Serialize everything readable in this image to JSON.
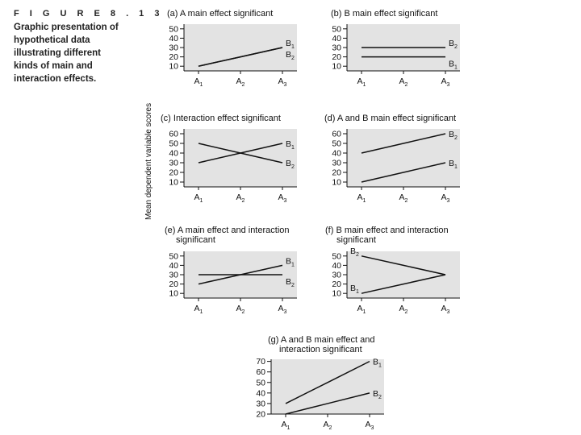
{
  "figure": {
    "number": "F I G U R E   8 . 1 3",
    "caption_lines": [
      "Graphic presentation of",
      "hypothetical data",
      "illustrating different",
      "kinds of main and",
      "interaction effects."
    ],
    "ylabel": "Mean dependent variable scores"
  },
  "chart_data": [
    {
      "type": "line",
      "title_lines": [
        "(a) A main effect significant"
      ],
      "categories": [
        "A1",
        "A2",
        "A3"
      ],
      "yticks": [
        10,
        20,
        30,
        40,
        50
      ],
      "ylim": [
        5,
        55
      ],
      "grid": false,
      "series": [
        {
          "name": "B1",
          "values": [
            10,
            20,
            30
          ]
        },
        {
          "name": "B2",
          "values": [
            10,
            20,
            30
          ]
        }
      ]
    },
    {
      "type": "line",
      "title_lines": [
        "(b) B main effect significant"
      ],
      "categories": [
        "A1",
        "A2",
        "A3"
      ],
      "yticks": [
        10,
        20,
        30,
        40,
        50
      ],
      "ylim": [
        5,
        55
      ],
      "grid": false,
      "series": [
        {
          "name": "B2",
          "values": [
            30,
            30,
            30
          ]
        },
        {
          "name": "B1",
          "values": [
            20,
            20,
            20
          ]
        }
      ]
    },
    {
      "type": "line",
      "title_lines": [
        "(c) Interaction effect significant"
      ],
      "categories": [
        "A1",
        "A2",
        "A3"
      ],
      "yticks": [
        10,
        20,
        30,
        40,
        50,
        60
      ],
      "ylim": [
        5,
        65
      ],
      "grid": false,
      "series": [
        {
          "name": "B1",
          "values": [
            30,
            40,
            50
          ]
        },
        {
          "name": "B2",
          "values": [
            50,
            40,
            30
          ]
        }
      ]
    },
    {
      "type": "line",
      "title_lines": [
        "(d) A and B main effect significant"
      ],
      "categories": [
        "A1",
        "A2",
        "A3"
      ],
      "yticks": [
        10,
        20,
        30,
        40,
        50,
        60
      ],
      "ylim": [
        5,
        65
      ],
      "grid": false,
      "series": [
        {
          "name": "B2",
          "values": [
            40,
            50,
            60
          ]
        },
        {
          "name": "B1",
          "values": [
            10,
            20,
            30
          ]
        }
      ]
    },
    {
      "type": "line",
      "title_lines": [
        "(e) A main effect and interaction",
        "significant"
      ],
      "categories": [
        "A1",
        "A2",
        "A3"
      ],
      "yticks": [
        10,
        20,
        30,
        40,
        50
      ],
      "ylim": [
        5,
        55
      ],
      "grid": false,
      "series": [
        {
          "name": "B1",
          "values": [
            20,
            30,
            40
          ]
        },
        {
          "name": "B2",
          "values": [
            30,
            30,
            30
          ]
        }
      ]
    },
    {
      "type": "line",
      "title_lines": [
        "(f) B main effect and interaction",
        "significant"
      ],
      "categories": [
        "A1",
        "A2",
        "A3"
      ],
      "yticks": [
        10,
        20,
        30,
        40,
        50
      ],
      "ylim": [
        5,
        55
      ],
      "grid": false,
      "series": [
        {
          "name": "B2",
          "values": [
            50,
            40,
            30
          ]
        },
        {
          "name": "B1",
          "values": [
            10,
            20,
            30
          ]
        }
      ]
    },
    {
      "type": "line",
      "title_lines": [
        "(g) A and B main effect and",
        "interaction significant"
      ],
      "categories": [
        "A1",
        "A2",
        "A3"
      ],
      "yticks": [
        20,
        30,
        40,
        50,
        60,
        70
      ],
      "ylim": [
        20,
        72
      ],
      "grid": false,
      "series": [
        {
          "name": "B1",
          "values": [
            30,
            50,
            70
          ]
        },
        {
          "name": "B2",
          "values": [
            20,
            30,
            40
          ]
        }
      ]
    }
  ]
}
